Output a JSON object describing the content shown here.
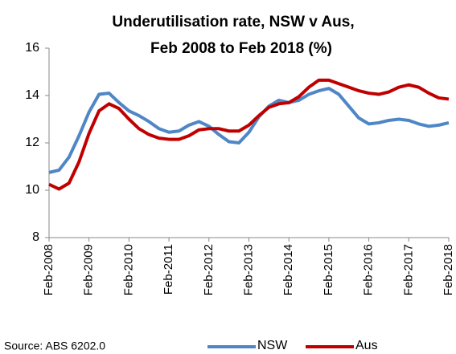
{
  "chart_data": {
    "type": "line",
    "title": [
      "Underutilisation rate, NSW v Aus,",
      "Feb 2008 to Feb 2018 (%)"
    ],
    "categories": [
      "Feb-2008",
      null,
      null,
      null,
      "Feb-2009",
      null,
      null,
      null,
      "Feb-2010",
      null,
      null,
      null,
      "Feb-2011",
      null,
      null,
      null,
      "Feb-2012",
      null,
      null,
      null,
      "Feb-2013",
      null,
      null,
      null,
      "Feb-2014",
      null,
      null,
      null,
      "Feb-2015",
      null,
      null,
      null,
      "Feb-2016",
      null,
      null,
      null,
      "Feb-2017",
      null,
      null,
      null,
      "Feb-2018"
    ],
    "series": [
      {
        "name": "NSW",
        "color": "#4f86c6",
        "values": [
          10.75,
          10.85,
          11.4,
          12.3,
          13.3,
          14.05,
          14.1,
          13.7,
          13.35,
          13.15,
          12.9,
          12.6,
          12.45,
          12.5,
          12.75,
          12.9,
          12.7,
          12.35,
          12.05,
          12.0,
          12.45,
          13.1,
          13.55,
          13.8,
          13.7,
          13.8,
          14.05,
          14.2,
          14.3,
          14.05,
          13.55,
          13.05,
          12.8,
          12.85,
          12.95,
          13.0,
          12.95,
          12.8,
          12.7,
          12.75,
          12.85
        ]
      },
      {
        "name": "Aus",
        "color": "#c00000",
        "values": [
          10.25,
          10.05,
          10.3,
          11.2,
          12.4,
          13.35,
          13.65,
          13.45,
          13.0,
          12.6,
          12.35,
          12.2,
          12.15,
          12.15,
          12.3,
          12.55,
          12.6,
          12.6,
          12.5,
          12.5,
          12.75,
          13.15,
          13.5,
          13.65,
          13.7,
          13.95,
          14.35,
          14.65,
          14.65,
          14.5,
          14.35,
          14.2,
          14.1,
          14.05,
          14.15,
          14.35,
          14.45,
          14.35,
          14.1,
          13.9,
          13.85
        ]
      }
    ],
    "ylim": [
      8,
      16
    ],
    "yticks": [
      8,
      10,
      12,
      14,
      16
    ],
    "grid": false,
    "legend": "bottom",
    "source": "Source: ABS 6202.0"
  }
}
